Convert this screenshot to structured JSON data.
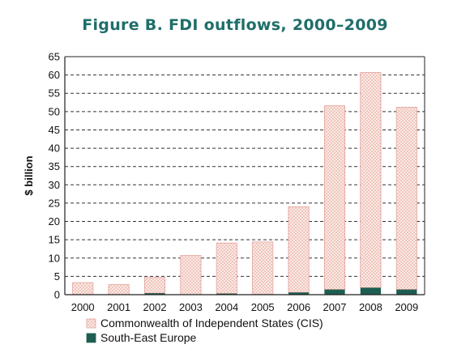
{
  "chart_data": {
    "type": "bar",
    "stacked": true,
    "title": "Figure B. FDI outflows, 2000–2009",
    "ylabel": "$ billion",
    "xlabel": "",
    "categories": [
      "2000",
      "2001",
      "2002",
      "2003",
      "2004",
      "2005",
      "2006",
      "2007",
      "2008",
      "2009"
    ],
    "ylim": [
      0,
      65
    ],
    "yticks": [
      0,
      5,
      10,
      15,
      20,
      25,
      30,
      35,
      40,
      45,
      50,
      55,
      60,
      65
    ],
    "grid": true,
    "legend_position": "bottom",
    "series": [
      {
        "name": "South-East Europe",
        "color": "#1e5e52",
        "values": [
          0.0,
          0.0,
          0.4,
          0.0,
          0.3,
          0.1,
          0.6,
          1.4,
          1.9,
          1.4
        ]
      },
      {
        "name": "Commonwealth of Independent States (CIS)",
        "color": "#f7dad2",
        "values": [
          3.3,
          2.8,
          4.3,
          10.7,
          13.8,
          14.3,
          23.4,
          50.2,
          58.8,
          49.8
        ]
      }
    ]
  }
}
